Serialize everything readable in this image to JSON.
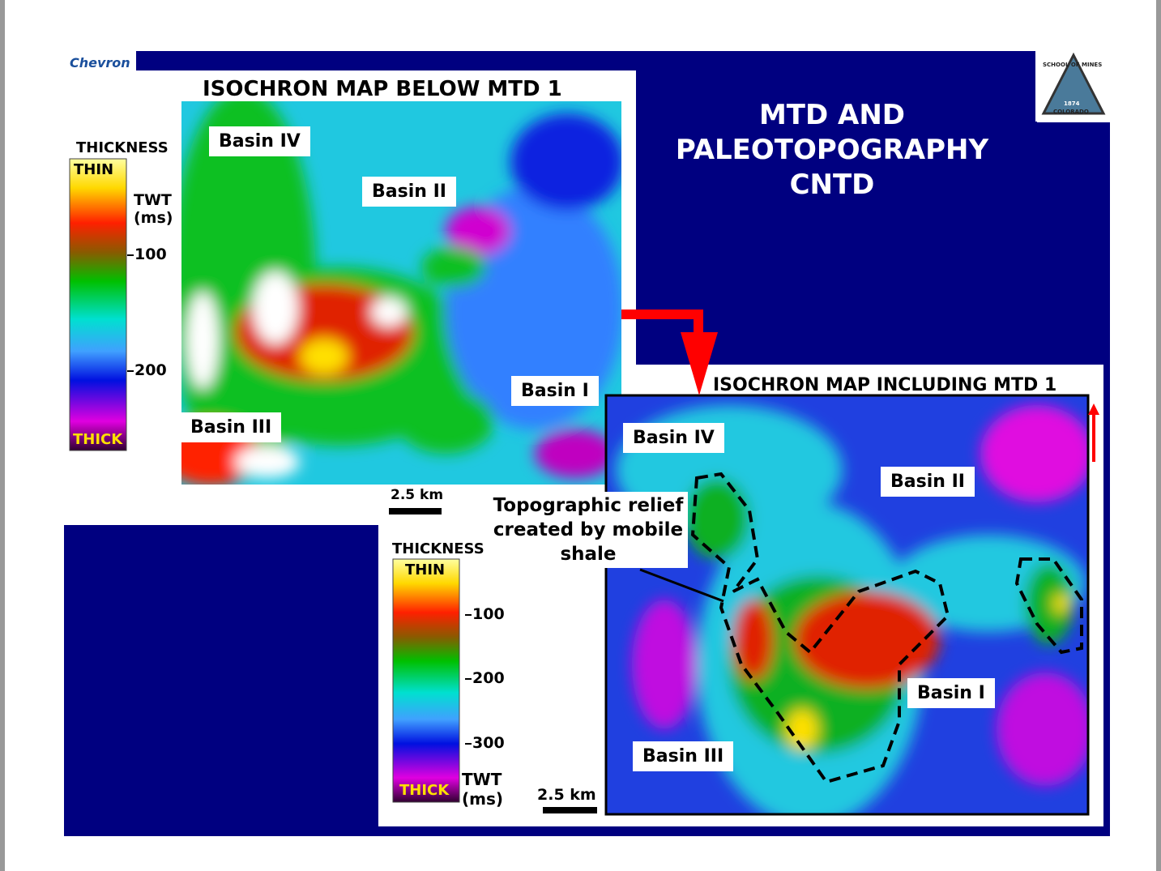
{
  "header": {
    "brand": "Chevron",
    "title_lines": [
      "MTD AND",
      "PALEOTOPOGRAPHY",
      "CNTD"
    ],
    "logo": {
      "top": "SCHOOL OF MINES",
      "year": "1874",
      "bottom": "COLORADO"
    }
  },
  "map_below": {
    "title": "ISOCHRON MAP BELOW MTD 1",
    "basins": [
      "Basin IV",
      "Basin II",
      "Basin I",
      "Basin III"
    ],
    "legend": {
      "heading": "THICKNESS",
      "thin": "THIN",
      "thick": "THICK",
      "unit": "TWT (ms)",
      "ticks": [
        100,
        200
      ]
    },
    "scale": "2.5 km"
  },
  "map_including": {
    "title": "ISOCHRON MAP INCLUDING MTD 1",
    "basins": [
      "Basin IV",
      "Basin II",
      "Basin I",
      "Basin III"
    ],
    "legend": {
      "heading": "THICKNESS",
      "thin": "THIN",
      "thick": "THICK",
      "unit": "TWT (ms)",
      "ticks": [
        100,
        200,
        300
      ]
    },
    "scale": "2.5 km",
    "annotation": "Topographic relief created by mobile shale"
  }
}
